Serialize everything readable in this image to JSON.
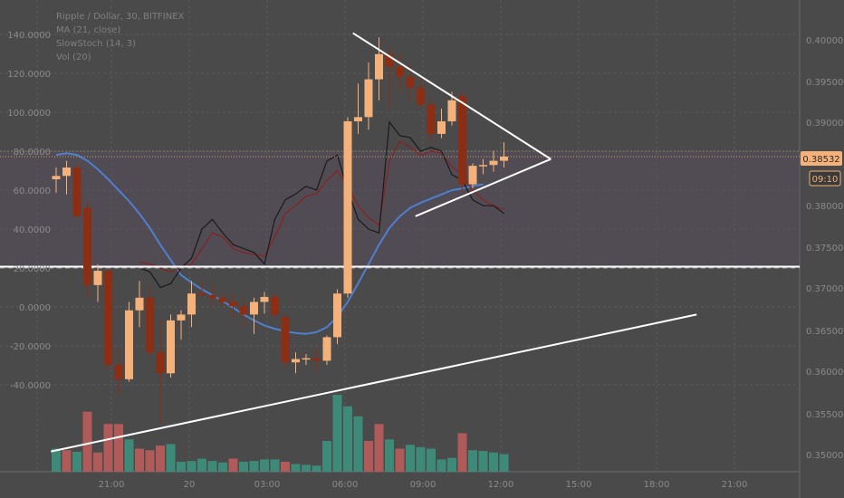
{
  "header": {
    "symbol_line": "Ripple / Dollar, 30, BITFINEX",
    "ma_line": "MA (21, close)",
    "stoch_line": "SlowStoch (14, 3)",
    "vol_line": "Vol (20)"
  },
  "price_tag": "0.38532",
  "countdown_tag": "09:10",
  "colors": {
    "background": "#4a4a4a",
    "up_candle": "#f4b27a",
    "down_candle": "#8b2e14",
    "ma_line": "#4f7fd0",
    "stoch_k": "#1a1a1a",
    "stoch_d": "#8b2020",
    "vol_up": "#3e8a78",
    "vol_down": "#b05a5a",
    "trendline": "#ffffff",
    "stoch_band": "#5a4f62"
  },
  "chart_data": {
    "type": "candlestick",
    "x_tick_labels": [
      "21:00",
      "20",
      "03:00",
      "06:00",
      "09:00",
      "12:00",
      "15:00",
      "18:00",
      "21:00"
    ],
    "left_axis_labels": [
      "140.0000",
      "120.0000",
      "100.0000",
      "80.0000",
      "60.0000",
      "40.0000",
      "20.0000",
      "0.0000",
      "-20.0000",
      "-40.0000"
    ],
    "right_axis_labels": [
      "0.40000",
      "0.39500",
      "0.39000",
      "0.38000",
      "0.37500",
      "0.37000",
      "0.36500",
      "0.36000",
      "0.35500",
      "0.35000"
    ],
    "left_axis": {
      "top_value": 140,
      "tick_step": 20
    },
    "candles": [
      {
        "o": 0.3826,
        "h": 0.384,
        "l": 0.381,
        "c": 0.383
      },
      {
        "o": 0.383,
        "h": 0.3848,
        "l": 0.3808,
        "c": 0.384
      },
      {
        "o": 0.384,
        "h": 0.3845,
        "l": 0.378,
        "c": 0.3782
      },
      {
        "o": 0.3792,
        "h": 0.38,
        "l": 0.3685,
        "c": 0.37
      },
      {
        "o": 0.37,
        "h": 0.3725,
        "l": 0.368,
        "c": 0.3717
      },
      {
        "o": 0.3717,
        "h": 0.372,
        "l": 0.36,
        "c": 0.3605
      },
      {
        "o": 0.3605,
        "h": 0.3625,
        "l": 0.357,
        "c": 0.3588
      },
      {
        "o": 0.3588,
        "h": 0.368,
        "l": 0.3585,
        "c": 0.367
      },
      {
        "o": 0.367,
        "h": 0.3705,
        "l": 0.365,
        "c": 0.3685
      },
      {
        "o": 0.3685,
        "h": 0.37,
        "l": 0.3615,
        "c": 0.362
      },
      {
        "o": 0.362,
        "h": 0.366,
        "l": 0.3535,
        "c": 0.3595
      },
      {
        "o": 0.3595,
        "h": 0.3665,
        "l": 0.359,
        "c": 0.3658
      },
      {
        "o": 0.3658,
        "h": 0.367,
        "l": 0.3635,
        "c": 0.3665
      },
      {
        "o": 0.3665,
        "h": 0.3705,
        "l": 0.365,
        "c": 0.369
      },
      {
        "o": 0.369,
        "h": 0.3705,
        "l": 0.3685,
        "c": 0.3688
      },
      {
        "o": 0.3688,
        "h": 0.37,
        "l": 0.3675,
        "c": 0.3685
      },
      {
        "o": 0.3685,
        "h": 0.369,
        "l": 0.3675,
        "c": 0.368
      },
      {
        "o": 0.368,
        "h": 0.369,
        "l": 0.366,
        "c": 0.3675
      },
      {
        "o": 0.3675,
        "h": 0.3685,
        "l": 0.365,
        "c": 0.3665
      },
      {
        "o": 0.3665,
        "h": 0.3685,
        "l": 0.3642,
        "c": 0.368
      },
      {
        "o": 0.368,
        "h": 0.3692,
        "l": 0.3666,
        "c": 0.3686
      },
      {
        "o": 0.3686,
        "h": 0.369,
        "l": 0.366,
        "c": 0.3665
      },
      {
        "o": 0.3662,
        "h": 0.3665,
        "l": 0.3602,
        "c": 0.3608
      },
      {
        "o": 0.3608,
        "h": 0.362,
        "l": 0.3595,
        "c": 0.3612
      },
      {
        "o": 0.3612,
        "h": 0.3618,
        "l": 0.3605,
        "c": 0.3613
      },
      {
        "o": 0.3613,
        "h": 0.3625,
        "l": 0.3598,
        "c": 0.361
      },
      {
        "o": 0.361,
        "h": 0.364,
        "l": 0.3605,
        "c": 0.3638
      },
      {
        "o": 0.3638,
        "h": 0.3695,
        "l": 0.363,
        "c": 0.369
      },
      {
        "o": 0.369,
        "h": 0.39,
        "l": 0.3685,
        "c": 0.3895
      },
      {
        "o": 0.3895,
        "h": 0.394,
        "l": 0.388,
        "c": 0.39
      },
      {
        "o": 0.39,
        "h": 0.3965,
        "l": 0.3885,
        "c": 0.3945
      },
      {
        "o": 0.3945,
        "h": 0.3995,
        "l": 0.392,
        "c": 0.3975
      },
      {
        "o": 0.3975,
        "h": 0.3985,
        "l": 0.391,
        "c": 0.396
      },
      {
        "o": 0.396,
        "h": 0.3975,
        "l": 0.393,
        "c": 0.3948
      },
      {
        "o": 0.3948,
        "h": 0.3962,
        "l": 0.3918,
        "c": 0.3935
      },
      {
        "o": 0.3935,
        "h": 0.395,
        "l": 0.391,
        "c": 0.3915
      },
      {
        "o": 0.3915,
        "h": 0.3922,
        "l": 0.387,
        "c": 0.388
      },
      {
        "o": 0.388,
        "h": 0.391,
        "l": 0.3875,
        "c": 0.3895
      },
      {
        "o": 0.3895,
        "h": 0.393,
        "l": 0.389,
        "c": 0.392
      },
      {
        "o": 0.3925,
        "h": 0.393,
        "l": 0.381,
        "c": 0.382
      },
      {
        "o": 0.382,
        "h": 0.3845,
        "l": 0.3815,
        "c": 0.3842
      },
      {
        "o": 0.3842,
        "h": 0.385,
        "l": 0.3832,
        "c": 0.3843
      },
      {
        "o": 0.3843,
        "h": 0.386,
        "l": 0.3835,
        "c": 0.3848
      },
      {
        "o": 0.3848,
        "h": 0.387,
        "l": 0.384,
        "c": 0.3853
      }
    ],
    "ma_21": [
      0.3855,
      0.3857,
      0.3855,
      0.3848,
      0.3838,
      0.3826,
      0.3813,
      0.38,
      0.3785,
      0.3768,
      0.3748,
      0.373,
      0.3712,
      0.3703,
      0.3695,
      0.3688,
      0.3681,
      0.3673,
      0.3665,
      0.3658,
      0.3652,
      0.3648,
      0.3645,
      0.3643,
      0.3642,
      0.3644,
      0.365,
      0.3662,
      0.368,
      0.3702,
      0.3725,
      0.3748,
      0.3768,
      0.3782,
      0.3792,
      0.3798,
      0.3803,
      0.3808,
      0.3813,
      0.3815,
      0.3818,
      0.382
    ],
    "stoch_k": [
      20,
      18,
      10,
      12,
      20,
      25,
      40,
      45,
      38,
      32,
      30,
      28,
      22,
      45,
      55,
      58,
      62,
      60,
      75,
      78,
      60,
      45,
      40,
      38,
      95,
      88,
      87,
      80,
      82,
      80,
      68,
      65,
      55,
      52,
      52,
      48
    ],
    "stoch_d": [
      23,
      22,
      20,
      18,
      20,
      22,
      30,
      38,
      36,
      30,
      28,
      27,
      26,
      36,
      48,
      52,
      57,
      58,
      65,
      70,
      62,
      52,
      46,
      42,
      75,
      85,
      82,
      78,
      80,
      79,
      72,
      68,
      60,
      55,
      52,
      50
    ],
    "volume": [
      {
        "v": 0.3,
        "up": true
      },
      {
        "v": 0.28,
        "up": false
      },
      {
        "v": 0.26,
        "up": true
      },
      {
        "v": 0.78,
        "up": false
      },
      {
        "v": 0.25,
        "up": false
      },
      {
        "v": 0.62,
        "up": false
      },
      {
        "v": 0.62,
        "up": false
      },
      {
        "v": 0.42,
        "up": true
      },
      {
        "v": 0.3,
        "up": false
      },
      {
        "v": 0.28,
        "up": false
      },
      {
        "v": 0.34,
        "up": false
      },
      {
        "v": 0.36,
        "up": true
      },
      {
        "v": 0.13,
        "up": true
      },
      {
        "v": 0.14,
        "up": true
      },
      {
        "v": 0.17,
        "up": true
      },
      {
        "v": 0.14,
        "up": true
      },
      {
        "v": 0.12,
        "up": true
      },
      {
        "v": 0.17,
        "up": false
      },
      {
        "v": 0.13,
        "up": true
      },
      {
        "v": 0.14,
        "up": true
      },
      {
        "v": 0.16,
        "up": true
      },
      {
        "v": 0.16,
        "up": true
      },
      {
        "v": 0.13,
        "up": false
      },
      {
        "v": 0.1,
        "up": true
      },
      {
        "v": 0.09,
        "up": true
      },
      {
        "v": 0.08,
        "up": true
      },
      {
        "v": 0.4,
        "up": true
      },
      {
        "v": 1.0,
        "up": true
      },
      {
        "v": 0.85,
        "up": true
      },
      {
        "v": 0.72,
        "up": true
      },
      {
        "v": 0.4,
        "up": false
      },
      {
        "v": 0.62,
        "up": false
      },
      {
        "v": 0.42,
        "up": true
      },
      {
        "v": 0.3,
        "up": false
      },
      {
        "v": 0.35,
        "up": true
      },
      {
        "v": 0.32,
        "up": true
      },
      {
        "v": 0.3,
        "up": true
      },
      {
        "v": 0.16,
        "up": true
      },
      {
        "v": 0.18,
        "up": true
      },
      {
        "v": 0.5,
        "up": false
      },
      {
        "v": 0.28,
        "up": true
      },
      {
        "v": 0.27,
        "up": true
      },
      {
        "v": 0.25,
        "up": true
      },
      {
        "v": 0.23,
        "up": true
      }
    ],
    "horizontal_line_price": 0.3722,
    "dashed_line_level": 20,
    "stoch_band": [
      20,
      80
    ],
    "trendlines": [
      {
        "p1": {
          "bar": 28.5,
          "price": 0.4
        },
        "p2": {
          "bar": 47.5,
          "price": 0.385
        }
      },
      {
        "p1": {
          "bar": 34.5,
          "price": 0.3782
        },
        "p2": {
          "bar": 47.5,
          "price": 0.385
        }
      },
      {
        "p1": {
          "bar": -0.5,
          "price": 0.3502
        },
        "p2": {
          "bar": 61.5,
          "price": 0.3665
        }
      }
    ],
    "price_range": [
      0.348,
      0.402
    ],
    "grid": true
  }
}
